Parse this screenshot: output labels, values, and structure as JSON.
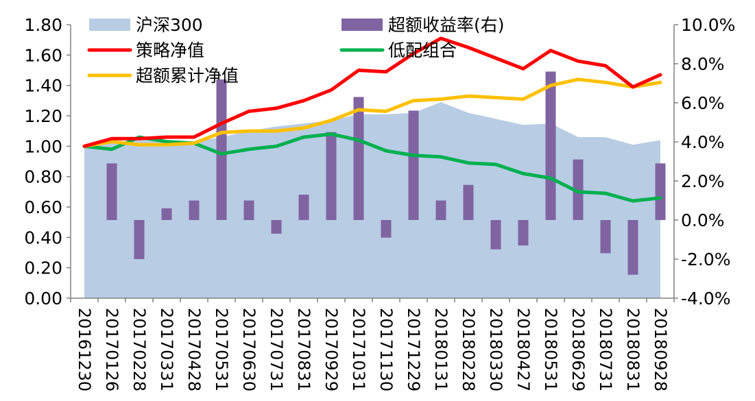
{
  "chart_data": {
    "type": "line",
    "categories": [
      "20161230",
      "20170126",
      "20170228",
      "20170331",
      "20170428",
      "20170531",
      "20170630",
      "20170731",
      "20170831",
      "20170929",
      "20171031",
      "20171130",
      "20171229",
      "20180131",
      "20180228",
      "20180330",
      "20180427",
      "20180531",
      "20180629",
      "20180731",
      "20180831",
      "20180928"
    ],
    "left_axis": {
      "ylim": [
        0,
        1.8
      ],
      "ticks": [
        "0.00",
        "0.20",
        "0.40",
        "0.60",
        "0.80",
        "1.00",
        "1.20",
        "1.40",
        "1.60",
        "1.80"
      ]
    },
    "right_axis": {
      "ylim": [
        -4.0,
        10.0
      ],
      "ticks": [
        "-4.0%",
        "-2.0%",
        "0.0%",
        "2.0%",
        "4.0%",
        "6.0%",
        "8.0%",
        "10.0%"
      ]
    },
    "series": [
      {
        "name": "沪深300",
        "kind": "area",
        "axis": "left",
        "color": "#b8cce4",
        "values": [
          1.0,
          1.02,
          1.04,
          1.04,
          1.03,
          1.06,
          1.1,
          1.13,
          1.15,
          1.17,
          1.21,
          1.21,
          1.22,
          1.29,
          1.22,
          1.18,
          1.14,
          1.15,
          1.06,
          1.06,
          1.01,
          1.04
        ]
      },
      {
        "name": "超额收益率(右)",
        "kind": "bar",
        "axis": "right",
        "color": "#8064a2",
        "values": [
          null,
          2.9,
          -2.0,
          0.6,
          1.0,
          7.2,
          1.0,
          -0.7,
          1.3,
          4.5,
          6.3,
          -0.9,
          5.6,
          1.0,
          1.8,
          -1.5,
          -1.3,
          7.6,
          3.1,
          -1.7,
          -2.8,
          2.9
        ]
      },
      {
        "name": "策略净值",
        "kind": "line",
        "axis": "left",
        "color": "#ff0000",
        "values": [
          1.0,
          1.05,
          1.05,
          1.06,
          1.06,
          1.15,
          1.23,
          1.25,
          1.3,
          1.37,
          1.5,
          1.49,
          1.61,
          1.71,
          1.65,
          1.58,
          1.51,
          1.63,
          1.56,
          1.53,
          1.39,
          1.47
        ]
      },
      {
        "name": "低配组合",
        "kind": "line",
        "axis": "left",
        "color": "#00b050",
        "values": [
          1.0,
          0.98,
          1.06,
          1.03,
          1.02,
          0.95,
          0.98,
          1.0,
          1.06,
          1.08,
          1.04,
          0.97,
          0.94,
          0.93,
          0.89,
          0.88,
          0.82,
          0.79,
          0.7,
          0.69,
          0.64,
          0.66
        ]
      },
      {
        "name": "超额累计净值",
        "kind": "line",
        "axis": "left",
        "color": "#ffc000",
        "values": [
          1.0,
          1.03,
          1.01,
          1.01,
          1.02,
          1.09,
          1.1,
          1.1,
          1.12,
          1.17,
          1.24,
          1.23,
          1.3,
          1.31,
          1.33,
          1.32,
          1.31,
          1.4,
          1.44,
          1.42,
          1.39,
          1.42
        ]
      }
    ],
    "legend_position": "top",
    "grid": false
  }
}
